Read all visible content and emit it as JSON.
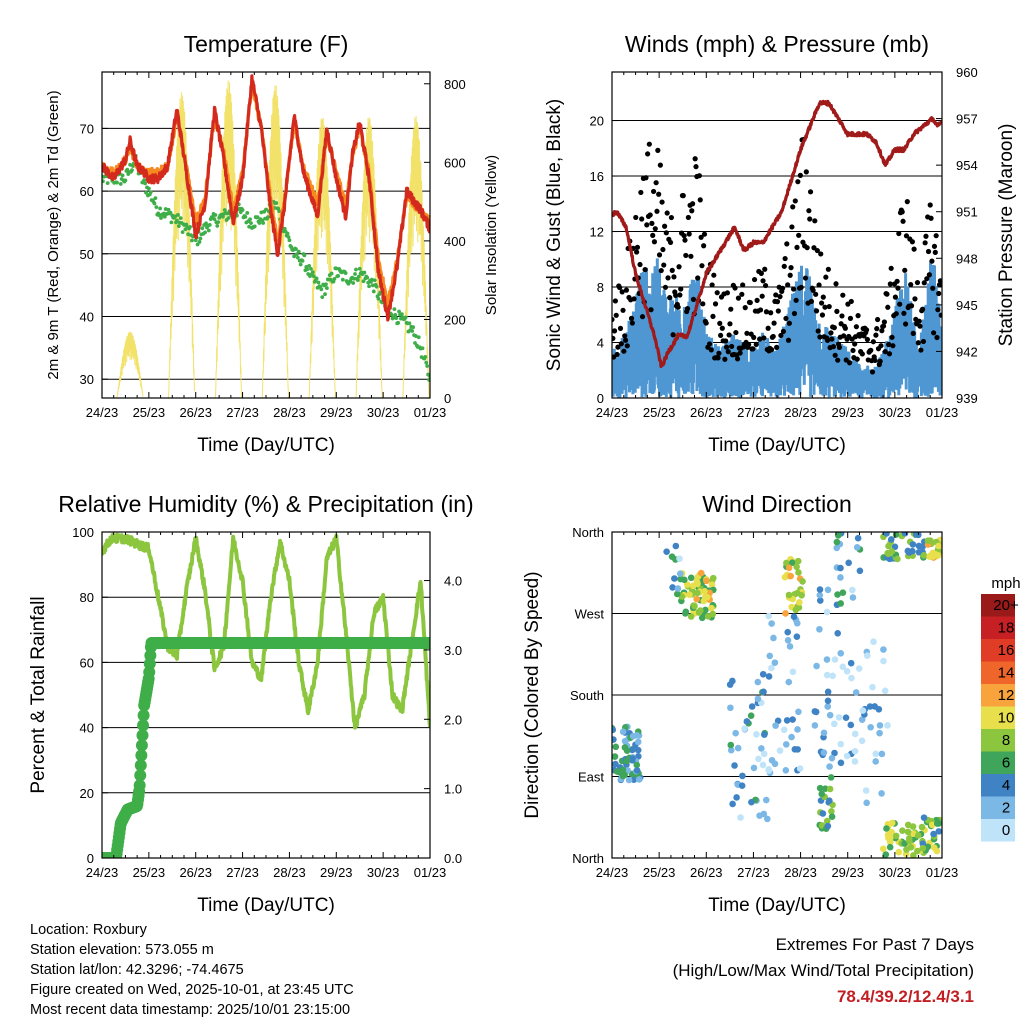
{
  "days": [
    "24/23",
    "25/23",
    "26/23",
    "27/23",
    "28/23",
    "29/23",
    "30/23",
    "01/23"
  ],
  "colors": {
    "temp2m": "#d42a1e",
    "temp9m": "#f6891f",
    "dewpt": "#3fae49",
    "solar": "#f2e26a",
    "gust": "#000000",
    "wind": "#4f97d2",
    "pressure": "#a11a1a",
    "rh": "#8cc63f",
    "precip": "#3fae49"
  },
  "chart_data": [
    {
      "id": "temperature",
      "type": "line",
      "title": "Temperature (F)",
      "xlabel": "Time (Day/UTC)",
      "ylabel": "2m & 9m T (Red, Orange) & 2m Td (Green)",
      "y2label": "Solar Insolation (Yellow)",
      "xlim": [
        0,
        7
      ],
      "ylim": [
        27,
        79
      ],
      "yticks": [
        30,
        40,
        50,
        60,
        70
      ],
      "y2lim": [
        0,
        830
      ],
      "y2ticks": [
        0,
        200,
        400,
        600,
        800
      ],
      "series": [
        {
          "name": "2m T",
          "color_key": "temp2m",
          "x": [
            0,
            0.25,
            0.5,
            0.6,
            0.75,
            0.9,
            1.0,
            1.2,
            1.4,
            1.6,
            1.8,
            2.0,
            2.2,
            2.4,
            2.6,
            2.8,
            3.0,
            3.2,
            3.4,
            3.6,
            3.75,
            3.9,
            4.1,
            4.3,
            4.6,
            4.8,
            5.0,
            5.2,
            5.35,
            5.5,
            5.7,
            5.9,
            6.1,
            6.3,
            6.5,
            6.8,
            7.0
          ],
          "y": [
            64,
            62,
            65,
            68,
            64,
            63,
            62,
            62,
            64,
            73,
            63,
            53,
            58,
            73,
            65,
            55,
            62,
            78,
            70,
            57,
            50,
            58,
            72,
            63,
            56,
            70,
            62,
            56,
            66,
            71,
            62,
            47,
            40,
            48,
            60,
            57,
            54
          ]
        },
        {
          "name": "9m T",
          "color_key": "temp9m",
          "x": [
            0,
            0.25,
            0.5,
            0.6,
            0.75,
            0.9,
            1.0,
            1.2,
            1.4,
            1.6,
            1.8,
            2.0,
            2.2,
            2.4,
            2.6,
            2.8,
            3.0,
            3.2,
            3.4,
            3.6,
            3.75,
            3.9,
            4.1,
            4.3,
            4.6,
            4.8,
            5.0,
            5.2,
            5.35,
            5.5,
            5.7,
            5.9,
            6.1,
            6.3,
            6.5,
            6.8,
            7.0
          ],
          "y": [
            64,
            63,
            65,
            67,
            64,
            63,
            63,
            63,
            64,
            72,
            64,
            55,
            59,
            72,
            66,
            57,
            63,
            77,
            70,
            59,
            52,
            59,
            71,
            64,
            58,
            69,
            63,
            58,
            66,
            70,
            63,
            49,
            42,
            49,
            59,
            57,
            55
          ]
        },
        {
          "name": "2m Td",
          "color_key": "dewpt",
          "x": [
            0,
            0.2,
            0.5,
            0.7,
            0.9,
            1.0,
            1.2,
            1.5,
            1.8,
            2.0,
            2.3,
            2.6,
            2.9,
            3.2,
            3.5,
            3.7,
            3.9,
            4.1,
            4.3,
            4.5,
            4.7,
            5.0,
            5.3,
            5.5,
            5.8,
            6.0,
            6.3,
            6.6,
            6.8,
            7.0
          ],
          "y": [
            62,
            62,
            62,
            65,
            61,
            60,
            57,
            56,
            54,
            52,
            55,
            56,
            57,
            55,
            56,
            58,
            54,
            50,
            49,
            46,
            44,
            47,
            46,
            47,
            45,
            42,
            40,
            38,
            35,
            30
          ]
        }
      ],
      "solar_peaks": [
        {
          "x": 0.6,
          "value": 170
        },
        {
          "x": 1.7,
          "value": 780
        },
        {
          "x": 2.7,
          "value": 810
        },
        {
          "x": 3.7,
          "value": 800
        },
        {
          "x": 4.7,
          "value": 720
        },
        {
          "x": 5.7,
          "value": 720
        },
        {
          "x": 6.7,
          "value": 720
        }
      ]
    },
    {
      "id": "winds",
      "type": "scatter",
      "title": "Winds (mph) & Pressure (mb)",
      "xlabel": "Time (Day/UTC)",
      "ylabel": "Sonic Wind & Gust (Blue, Black)",
      "y2label": "Station Pressure (Maroon)",
      "xlim": [
        0,
        7
      ],
      "ylim": [
        0,
        23.5
      ],
      "yticks": [
        0,
        4,
        8,
        12,
        16,
        20
      ],
      "y2lim": [
        939,
        960
      ],
      "y2ticks": [
        939,
        942,
        945,
        948,
        951,
        954,
        957,
        960
      ],
      "gust_envelope": {
        "x": [
          0,
          0.3,
          0.6,
          0.9,
          1.2,
          1.5,
          1.8,
          2.0,
          2.3,
          2.6,
          2.9,
          3.2,
          3.5,
          3.8,
          4.1,
          4.4,
          4.7,
          5.0,
          5.3,
          5.6,
          5.9,
          6.2,
          6.5,
          6.8,
          7.0
        ],
        "y": [
          7,
          9,
          16,
          18,
          12,
          14,
          17,
          10,
          7,
          8,
          7,
          9,
          7,
          12,
          19,
          10,
          8,
          7,
          5,
          5,
          8,
          15,
          8,
          14,
          8
        ]
      },
      "wind_envelope": {
        "x": [
          0,
          0.3,
          0.6,
          0.9,
          1.2,
          1.5,
          1.8,
          2.0,
          2.3,
          2.6,
          2.9,
          3.2,
          3.5,
          3.8,
          4.1,
          4.4,
          4.7,
          5.0,
          5.3,
          5.6,
          5.9,
          6.2,
          6.5,
          6.8,
          7.0
        ],
        "y": [
          3,
          4,
          8,
          9,
          6,
          7,
          8,
          4,
          3,
          4,
          3,
          4,
          3,
          6,
          9,
          5,
          4,
          3,
          2,
          2,
          4,
          8,
          4,
          9,
          4
        ]
      },
      "pressure": {
        "x": [
          0,
          0.1,
          0.3,
          0.5,
          0.7,
          0.9,
          1.05,
          1.2,
          1.4,
          1.6,
          1.8,
          2.0,
          2.2,
          2.4,
          2.6,
          2.8,
          3.0,
          3.2,
          3.4,
          3.6,
          3.8,
          4.0,
          4.2,
          4.4,
          4.6,
          4.8,
          5.0,
          5.2,
          5.4,
          5.6,
          5.8,
          6.0,
          6.2,
          6.4,
          6.6,
          6.8,
          6.9,
          7.0
        ],
        "y": [
          950.8,
          951,
          950,
          947,
          945,
          943,
          941,
          942,
          943,
          943,
          945,
          947,
          948,
          949,
          950,
          948.5,
          949,
          949,
          950,
          951,
          953,
          955,
          956.5,
          958,
          958,
          957,
          956,
          956,
          956,
          955.5,
          954,
          955,
          955,
          956,
          956.5,
          957,
          956.5,
          956.8
        ]
      }
    },
    {
      "id": "humidity",
      "type": "line",
      "title": "Relative Humidity (%) & Precipitation (in)",
      "xlabel": "Time (Day/UTC)",
      "ylabel": "Percent & Total Rainfall",
      "xlim": [
        0,
        7
      ],
      "ylim": [
        0,
        100
      ],
      "yticks": [
        0,
        20,
        40,
        60,
        80,
        100
      ],
      "y2lim": [
        0,
        4.7
      ],
      "y2ticks": [
        0.0,
        1.0,
        2.0,
        3.0,
        4.0
      ],
      "y2ticklabels": [
        "0.0",
        "1.0",
        "2.0",
        "3.0",
        "4.0"
      ],
      "series": [
        {
          "name": "RH",
          "color_key": "rh",
          "x": [
            0,
            0.2,
            0.5,
            0.8,
            1.0,
            1.2,
            1.4,
            1.6,
            1.8,
            2.0,
            2.2,
            2.4,
            2.6,
            2.8,
            3.0,
            3.2,
            3.4,
            3.6,
            3.8,
            4.0,
            4.2,
            4.4,
            4.6,
            4.8,
            5.0,
            5.2,
            5.4,
            5.6,
            5.8,
            6.0,
            6.2,
            6.4,
            6.6,
            6.8,
            7.0
          ],
          "y": [
            94,
            98,
            98,
            96,
            95,
            80,
            65,
            62,
            82,
            98,
            82,
            58,
            65,
            98,
            85,
            60,
            55,
            80,
            97,
            85,
            60,
            45,
            60,
            92,
            98,
            70,
            40,
            50,
            75,
            80,
            50,
            45,
            65,
            85,
            40
          ]
        },
        {
          "name": "Total Precip",
          "color_key": "precip",
          "x": [
            0,
            0.1,
            0.3,
            0.4,
            0.55,
            0.75,
            0.8,
            0.9,
            1.0,
            1.05,
            1.3,
            2.0,
            3.0,
            4.0,
            5.0,
            6.0,
            7.0
          ],
          "y": [
            0,
            0,
            0,
            0.5,
            0.7,
            0.75,
            1.0,
            2.2,
            2.6,
            3.1,
            3.1,
            3.1,
            3.1,
            3.1,
            3.1,
            3.1,
            3.1
          ]
        }
      ]
    },
    {
      "id": "direction",
      "type": "scatter",
      "title": "Wind Direction",
      "xlabel": "Time (Day/UTC)",
      "ylabel": "Direction (Colored By Speed)",
      "xlim": [
        0,
        7
      ],
      "ylim": [
        0,
        360
      ],
      "yticks": [
        0,
        90,
        180,
        270,
        360
      ],
      "yticklabels": [
        "North",
        "East",
        "South",
        "West",
        "North"
      ],
      "colorbar": {
        "title": "mph",
        "levels": [
          "20+",
          "18",
          "16",
          "14",
          "12",
          "10",
          "8",
          "6",
          "4",
          "2",
          "0"
        ],
        "colors": [
          "#9a1a1a",
          "#c62025",
          "#e03c26",
          "#f0662a",
          "#f8a33c",
          "#e8df4c",
          "#8cc63f",
          "#3fa55a",
          "#3f83c4",
          "#7cb8e6",
          "#bfe3f8"
        ]
      },
      "clusters": [
        {
          "x": 0.3,
          "dir": 115,
          "spd": 4,
          "n": 60,
          "sx": 0.3,
          "sd": 30
        },
        {
          "x": 1.8,
          "dir": 290,
          "spd": 8,
          "n": 55,
          "sx": 0.35,
          "sd": 25
        },
        {
          "x": 1.9,
          "dir": 300,
          "spd": 11,
          "n": 15,
          "sx": 0.2,
          "sd": 15
        },
        {
          "x": 2.9,
          "dir": 120,
          "spd": 3,
          "n": 40,
          "sx": 0.4,
          "sd": 80
        },
        {
          "x": 3.6,
          "dir": 180,
          "spd": 2,
          "n": 40,
          "sx": 0.4,
          "sd": 90
        },
        {
          "x": 3.85,
          "dir": 300,
          "spd": 9,
          "n": 30,
          "sx": 0.2,
          "sd": 30
        },
        {
          "x": 4.7,
          "dir": 200,
          "spd": 2,
          "n": 40,
          "sx": 0.4,
          "sd": 100
        },
        {
          "x": 4.55,
          "dir": 60,
          "spd": 6,
          "n": 20,
          "sx": 0.15,
          "sd": 30
        },
        {
          "x": 5.5,
          "dir": 150,
          "spd": 2,
          "n": 30,
          "sx": 0.35,
          "sd": 90
        },
        {
          "x": 6.1,
          "dir": 20,
          "spd": 8,
          "n": 40,
          "sx": 0.35,
          "sd": 20
        },
        {
          "x": 6.7,
          "dir": 25,
          "spd": 7,
          "n": 30,
          "sx": 0.25,
          "sd": 20
        },
        {
          "x": 6.2,
          "dir": 345,
          "spd": 6,
          "n": 40,
          "sx": 0.45,
          "sd": 15
        },
        {
          "x": 6.85,
          "dir": 340,
          "spd": 10,
          "n": 20,
          "sx": 0.15,
          "sd": 12
        },
        {
          "x": 5.0,
          "dir": 300,
          "spd": 4,
          "n": 20,
          "sx": 0.3,
          "sd": 60
        },
        {
          "x": 1.3,
          "dir": 320,
          "spd": 3,
          "n": 10,
          "sx": 0.15,
          "sd": 30
        }
      ]
    }
  ],
  "footer": {
    "location": "Location: Roxbury",
    "elevation": "Station elevation: 573.055 m",
    "latlon": "Station lat/lon: 42.3296; -74.4675",
    "created": "Figure created on Wed, 2025-10-01, at 23:45 UTC",
    "recent": "Most recent data timestamp: 2025/10/01 23:15:00"
  },
  "extremes": {
    "title": "Extremes For Past 7 Days",
    "subtitle": "(High/Low/Max Wind/Total Precipitation)",
    "values": "78.4/39.2/12.4/3.1"
  }
}
